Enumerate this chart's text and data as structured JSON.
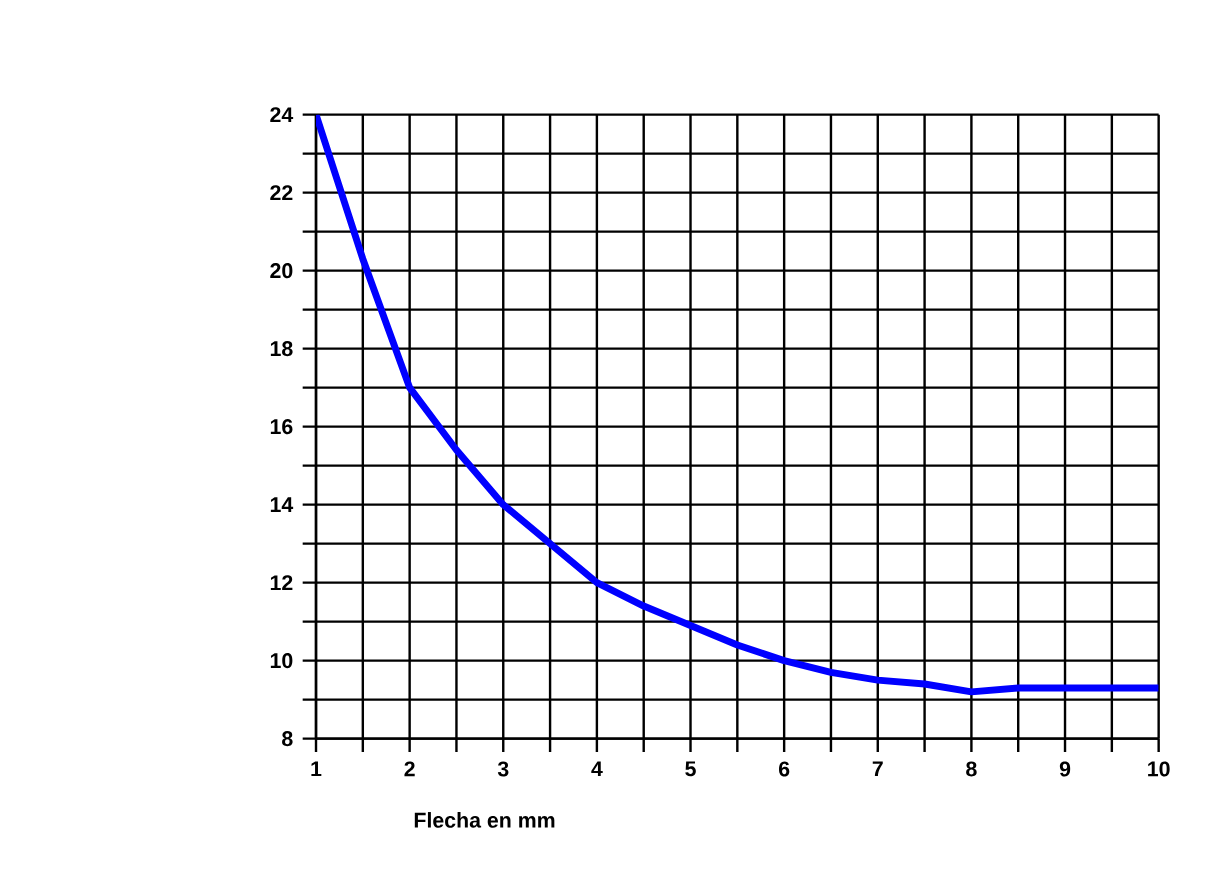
{
  "chart_data": {
    "type": "line",
    "xlabel": "Flecha en mm",
    "series": [
      {
        "color": "#0000ff",
        "x": [
          1,
          1.5,
          2,
          2.5,
          3,
          3.5,
          4,
          4.5,
          5,
          5.5,
          6,
          6.5,
          7,
          7.5,
          8,
          8.5,
          9,
          9.5,
          10
        ],
        "values": [
          24,
          20.3,
          17,
          15.4,
          14,
          13,
          12,
          11.4,
          10.9,
          10.4,
          10,
          9.7,
          9.5,
          9.4,
          9.2,
          9.3,
          9.3,
          9.3,
          9.3
        ]
      }
    ],
    "xlim": [
      1,
      10
    ],
    "ylim": [
      8,
      24
    ],
    "xticks": [
      1,
      {
        "value": 1.5,
        "label": null
      },
      2,
      {
        "value": 2.5,
        "label": null
      },
      3,
      {
        "value": 3.5,
        "label": null
      },
      4,
      {
        "value": 4.5,
        "label": null
      },
      5,
      {
        "value": 5.5,
        "label": null
      },
      6,
      {
        "value": 6.5,
        "label": null
      },
      7,
      {
        "value": 7.5,
        "label": null
      },
      8,
      {
        "value": 8.5,
        "label": null
      },
      9,
      {
        "value": 9.5,
        "label": null
      },
      10
    ],
    "yticks": [
      8,
      {
        "value": 9,
        "label": null
      },
      10,
      {
        "value": 11,
        "label": null
      },
      12,
      {
        "value": 13,
        "label": null
      },
      14,
      {
        "value": 15,
        "label": null
      },
      16,
      {
        "value": 17,
        "label": null
      },
      18,
      {
        "value": 19,
        "label": null
      },
      20,
      {
        "value": 21,
        "label": null
      },
      22,
      {
        "value": 23,
        "label": null
      },
      24
    ],
    "grid": true,
    "marker": "none",
    "line_style": "solid"
  }
}
